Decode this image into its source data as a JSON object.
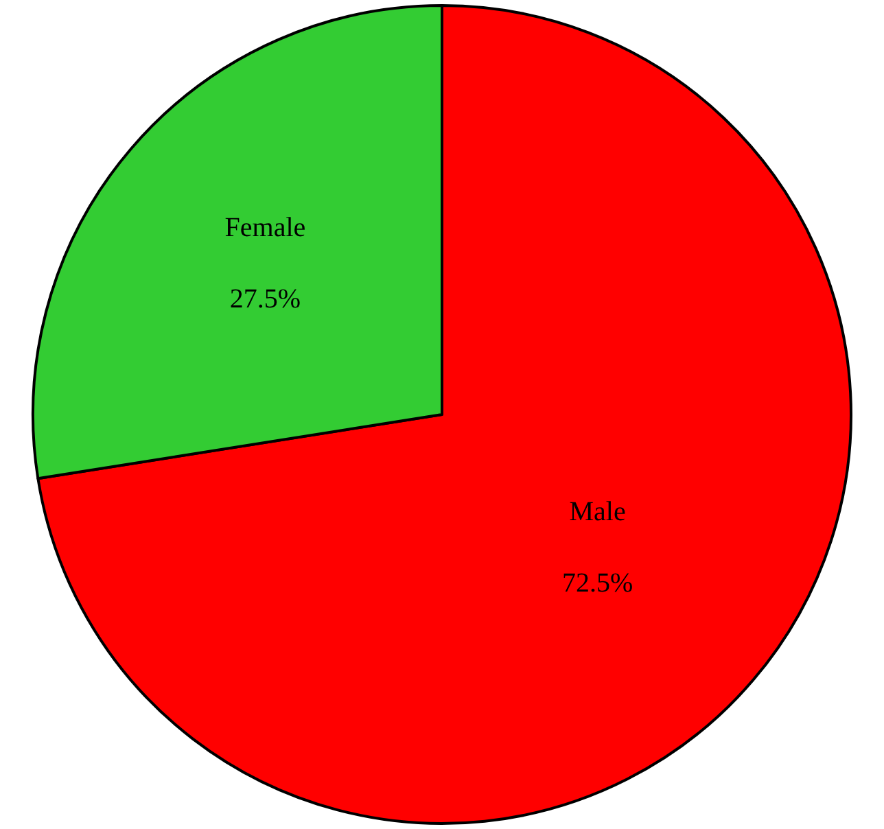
{
  "chart_data": {
    "type": "pie",
    "categories": [
      "Male",
      "Female"
    ],
    "values": [
      72.5,
      27.5
    ],
    "colors": [
      "#ff0000",
      "#33cc33"
    ],
    "value_labels": [
      "72.5%",
      "27.5%"
    ],
    "legend": false
  }
}
